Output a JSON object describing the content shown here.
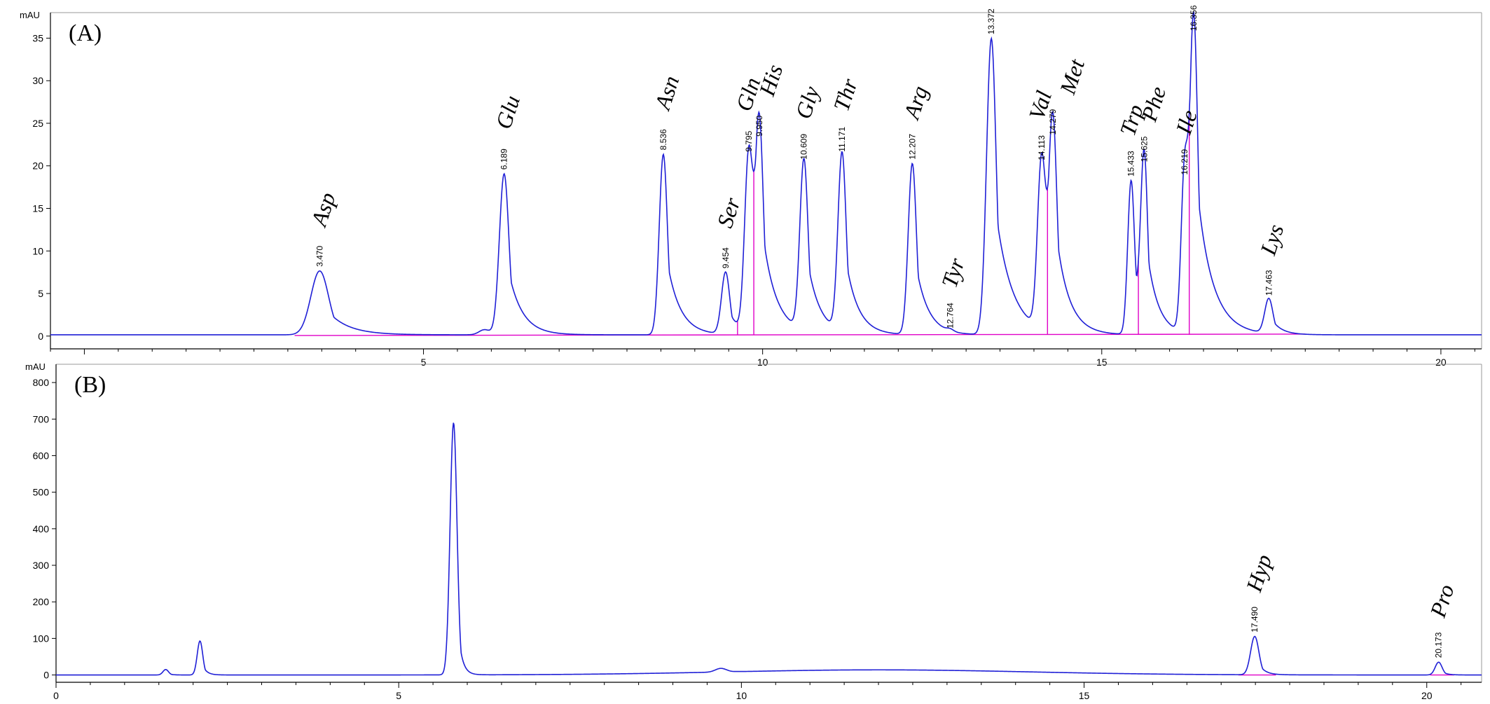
{
  "colors": {
    "trace": "#1f1fd6",
    "baseline": "#e000c8",
    "axis": "#000000",
    "frame": "#9a9a9a"
  },
  "chart_data": [
    {
      "type": "line",
      "panel_label": "(A)",
      "ylabel": "mAU",
      "xlim": [
        -0.5,
        20.6
      ],
      "ylim": [
        -1.5,
        38
      ],
      "x_ticks": [
        5,
        10,
        15,
        20
      ],
      "y_ticks": [
        0,
        5,
        10,
        15,
        20,
        25,
        30,
        35
      ],
      "baseline_level": 0.15,
      "peaks": [
        {
          "name": "Asp",
          "rt": "3.470",
          "x": 3.47,
          "height": 7.5,
          "width": 0.13,
          "tail": 0.3,
          "rt_label": true
        },
        {
          "name": "",
          "rt": "",
          "x": 5.9,
          "height": 0.6,
          "width": 0.08,
          "tail": 0.1,
          "rt_label": false
        },
        {
          "name": "Glu",
          "rt": "6.189",
          "x": 6.189,
          "height": 18.9,
          "width": 0.07,
          "tail": 0.2,
          "rt_label": true
        },
        {
          "name": "Asn",
          "rt": "8.536",
          "x": 8.536,
          "height": 21.2,
          "width": 0.06,
          "tail": 0.19,
          "rt_label": true
        },
        {
          "name": "Ser",
          "rt": "9.454",
          "x": 9.454,
          "height": 7.3,
          "width": 0.06,
          "tail": 0.14,
          "rt_label": true
        },
        {
          "name": "Gln",
          "rt": "9.795",
          "x": 9.795,
          "height": 21.0,
          "width": 0.06,
          "tail": 0.12,
          "rt_label": true
        },
        {
          "name": "His",
          "rt": "9.950",
          "x": 9.95,
          "height": 22.8,
          "width": 0.06,
          "tail": 0.22,
          "rt_label": true
        },
        {
          "name": "Gly",
          "rt": "10.609",
          "x": 10.609,
          "height": 20.1,
          "width": 0.06,
          "tail": 0.18,
          "rt_label": true
        },
        {
          "name": "Thr",
          "rt": "11.171",
          "x": 11.171,
          "height": 21.0,
          "width": 0.06,
          "tail": 0.18,
          "rt_label": true
        },
        {
          "name": "Arg",
          "rt": "12.207",
          "x": 12.207,
          "height": 20.1,
          "width": 0.06,
          "tail": 0.18,
          "rt_label": true
        },
        {
          "name": "Tyr",
          "rt": "12.764",
          "x": 12.764,
          "height": 0.25,
          "width": 0.05,
          "tail": 0.05,
          "rt_label": true
        },
        {
          "name": "",
          "rt": "13.372",
          "x": 13.372,
          "height": 34.8,
          "width": 0.07,
          "tail": 0.24,
          "rt_label": true
        },
        {
          "name": "Val",
          "rt": "14.113",
          "x": 14.113,
          "height": 20.0,
          "width": 0.06,
          "tail": 0.12,
          "rt_label": true
        },
        {
          "name": "Met",
          "rt": "14.279",
          "x": 14.279,
          "height": 23.0,
          "width": 0.06,
          "tail": 0.2,
          "rt_label": true
        },
        {
          "name": "Trp",
          "rt": "15.433",
          "x": 15.433,
          "height": 18.1,
          "width": 0.05,
          "tail": 0.12,
          "rt_label": true
        },
        {
          "name": "Phe",
          "rt": "15.625",
          "x": 15.625,
          "height": 19.8,
          "width": 0.05,
          "tail": 0.17,
          "rt_label": true
        },
        {
          "name": "Ile",
          "rt": "16.219",
          "x": 16.219,
          "height": 18.3,
          "width": 0.05,
          "tail": 0.1,
          "rt_label": true
        },
        {
          "name": "",
          "rt": "16.356",
          "x": 16.356,
          "height": 35.2,
          "width": 0.06,
          "tail": 0.24,
          "rt_label": true
        },
        {
          "name": "Lys",
          "rt": "17.463",
          "x": 17.463,
          "height": 4.1,
          "width": 0.06,
          "tail": 0.14,
          "rt_label": true
        }
      ],
      "drops": [
        9.63,
        9.87,
        14.2,
        15.54,
        16.29
      ]
    },
    {
      "type": "line",
      "panel_label": "(B)",
      "ylabel": "mAU",
      "xlim": [
        0,
        20.8
      ],
      "ylim": [
        -20,
        850
      ],
      "x_ticks": [
        0,
        5,
        10,
        15,
        20
      ],
      "y_ticks": [
        0,
        100,
        200,
        300,
        400,
        500,
        600,
        700,
        800
      ],
      "baseline_level": 0,
      "hump": {
        "x": 12.0,
        "height": 14,
        "width": 2.2
      },
      "peaks": [
        {
          "name": "",
          "rt": "",
          "x": 1.6,
          "height": 15,
          "width": 0.04,
          "tail": 0.05,
          "rt_label": false
        },
        {
          "name": "",
          "rt": "",
          "x": 2.1,
          "height": 93,
          "width": 0.04,
          "tail": 0.06,
          "rt_label": false
        },
        {
          "name": "",
          "rt": "",
          "x": 5.8,
          "height": 690,
          "width": 0.05,
          "tail": 0.06,
          "rt_label": false
        },
        {
          "name": "",
          "rt": "",
          "x": 9.7,
          "height": 10,
          "width": 0.08,
          "tail": 0.1,
          "rt_label": false
        },
        {
          "name": "Hyp",
          "rt": "17.490",
          "x": 17.49,
          "height": 105,
          "width": 0.06,
          "tail": 0.09,
          "rt_label": true
        },
        {
          "name": "Pro",
          "rt": "20.173",
          "x": 20.173,
          "height": 35,
          "width": 0.05,
          "tail": 0.07,
          "rt_label": true
        }
      ],
      "baseline_segments": [
        [
          17.25,
          17.8
        ],
        [
          20.05,
          20.4
        ]
      ]
    }
  ]
}
